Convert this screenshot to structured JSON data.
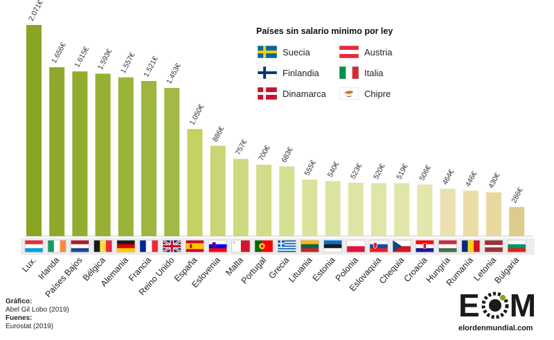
{
  "chart_data": {
    "type": "bar",
    "title": "",
    "xlabel": "",
    "ylabel": "",
    "ylim": [
      0,
      2200
    ],
    "grid": false,
    "categories": [
      "Lux.",
      "Irlanda",
      "Países Bajos",
      "Bélgica",
      "Alemania",
      "Francia",
      "Reino Unido",
      "España",
      "Eslovenia",
      "Malta",
      "Portugal",
      "Grecia",
      "Lituania",
      "Estonia",
      "Polonia",
      "Eslovaquia",
      "Chequia",
      "Croacia",
      "Hungría",
      "Rumanía",
      "Letonia",
      "Bulgaria"
    ],
    "values": [
      2071,
      1656,
      1615,
      1593,
      1557,
      1521,
      1453,
      1050,
      886,
      757,
      700,
      683,
      555,
      540,
      523,
      520,
      519,
      506,
      464,
      446,
      430,
      286
    ],
    "value_labels": [
      "2.071€",
      "1.656€",
      "1.615€",
      "1.593€",
      "1.557€",
      "1.521€",
      "1.453€",
      "1.050€",
      "886€",
      "757€",
      "700€",
      "683€",
      "555€",
      "540€",
      "523€",
      "520€",
      "519€",
      "506€",
      "464€",
      "446€",
      "430€",
      "286€"
    ],
    "bar_colors": [
      "#8aa523",
      "#8ea92a",
      "#92ad2f",
      "#96b034",
      "#9ab43a",
      "#9db63f",
      "#a1b945",
      "#c5d160",
      "#cad576",
      "#cfd980",
      "#d3dc8a",
      "#d7df93",
      "#dbe29b",
      "#dde3a1",
      "#dfe4a6",
      "#e0e5a8",
      "#e1e5aa",
      "#e3e6ad",
      "#ede0b0",
      "#ebdca8",
      "#e8d8a0",
      "#dccb8c"
    ],
    "flags": [
      "lu",
      "ie",
      "nl",
      "be",
      "de",
      "fr",
      "gb",
      "es",
      "si",
      "mt",
      "pt",
      "gr",
      "lt",
      "ee",
      "pl",
      "sk",
      "cz",
      "hr",
      "hu",
      "ro",
      "lv",
      "bg"
    ]
  },
  "legend": {
    "title": "Países sin salario mínimo por ley",
    "items": [
      {
        "label": "Suecia",
        "flag": "se"
      },
      {
        "label": "Austria",
        "flag": "at"
      },
      {
        "label": "Finlandia",
        "flag": "fi"
      },
      {
        "label": "Italia",
        "flag": "it"
      },
      {
        "label": "Dinamarca",
        "flag": "dk"
      },
      {
        "label": "Chipre",
        "flag": "cy"
      }
    ]
  },
  "credits": {
    "grafico_label": "Gráfico:",
    "grafico_value": "Abel Gil Lobo (2019)",
    "fuentes_label": "Fuenes:",
    "fuentes_value": "Eurostat (2019)"
  },
  "logo": {
    "letter_e": "E",
    "letter_m": "M",
    "site": "elordenmundial.com"
  }
}
